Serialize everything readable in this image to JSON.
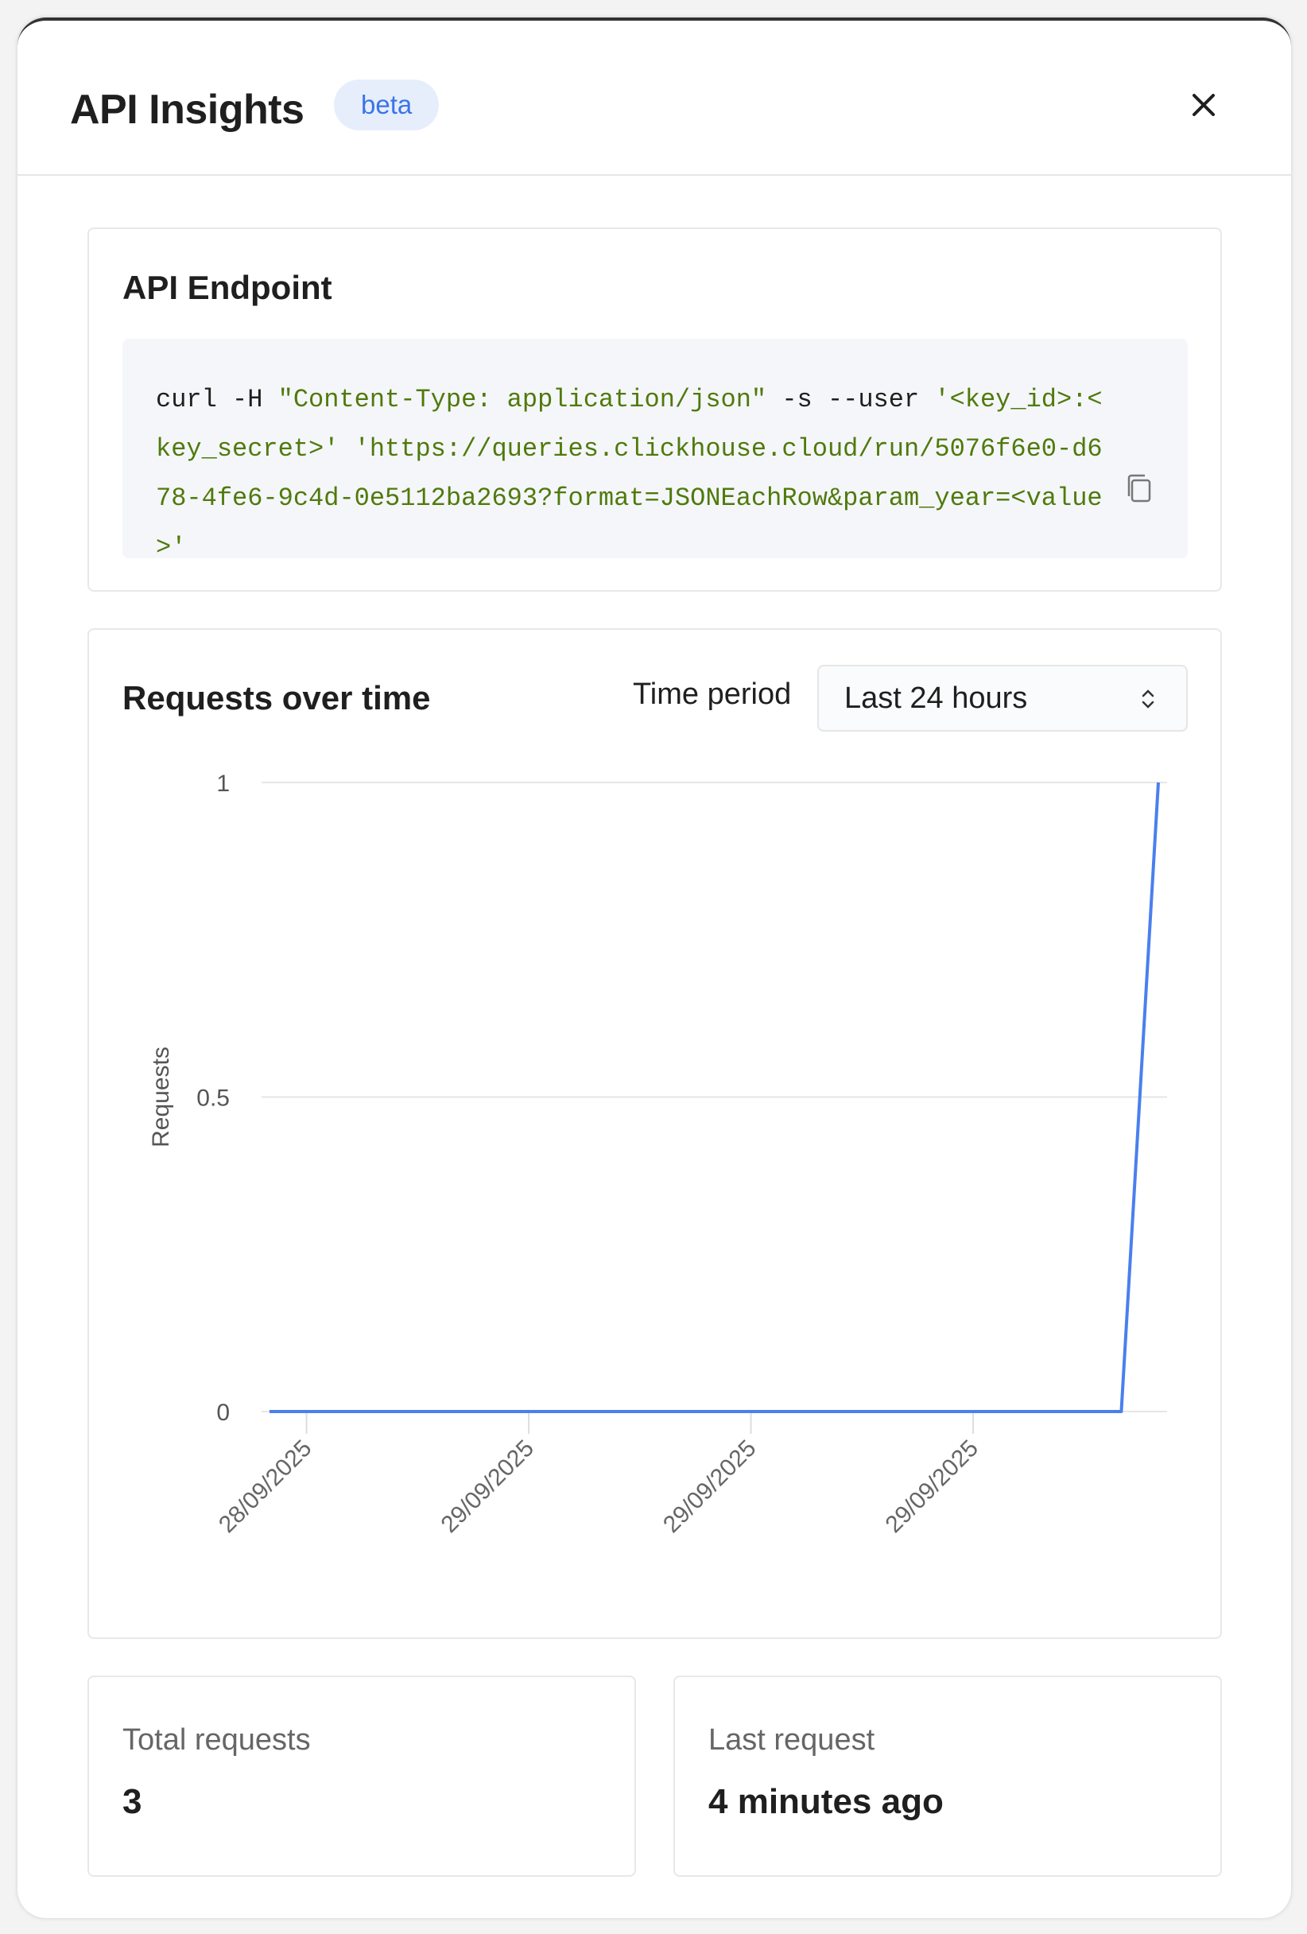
{
  "header": {
    "title": "API Insights",
    "badge": "beta",
    "close_icon": "close-icon"
  },
  "endpoint": {
    "title": "API Endpoint",
    "code_parts": [
      "curl -H ",
      "\"Content-Type: application/json\"",
      " -s --user ",
      "'<key_id>:<key_secret>' 'https://queries.clickhouse.cloud/run/5076f6e0-d678-4fe6-9c4d-0e5112ba2693?format=JSONEachRow&param_year=<value>'"
    ],
    "copy_icon": "copy-icon",
    "colors": {
      "string": "#4f7a0c",
      "plain": "#1f1f1f"
    }
  },
  "chart_section": {
    "title": "Requests over time",
    "time_period_label": "Time period",
    "time_period_value": "Last 24 hours"
  },
  "chart_data": {
    "type": "line",
    "ylabel": "Requests",
    "ylim": [
      0,
      1
    ],
    "y_ticks": [
      "0",
      "0.5",
      "1"
    ],
    "x_ticks": [
      {
        "label": "28/09/2025",
        "point": 1
      },
      {
        "label": "29/09/2025",
        "point": 7
      },
      {
        "label": "29/09/2025",
        "point": 13
      },
      {
        "label": "29/09/2025",
        "point": 19
      }
    ],
    "series": [
      {
        "color": "#4a7fee",
        "values": [
          0,
          0,
          0,
          0,
          0,
          0,
          0,
          0,
          0,
          0,
          0,
          0,
          0,
          0,
          0,
          0,
          0,
          0,
          0,
          0,
          0,
          0,
          0,
          0,
          1
        ]
      }
    ],
    "grid": true
  },
  "stats": [
    {
      "label": "Total requests",
      "value": "3"
    },
    {
      "label": "Last request",
      "value": "4 minutes ago"
    }
  ]
}
